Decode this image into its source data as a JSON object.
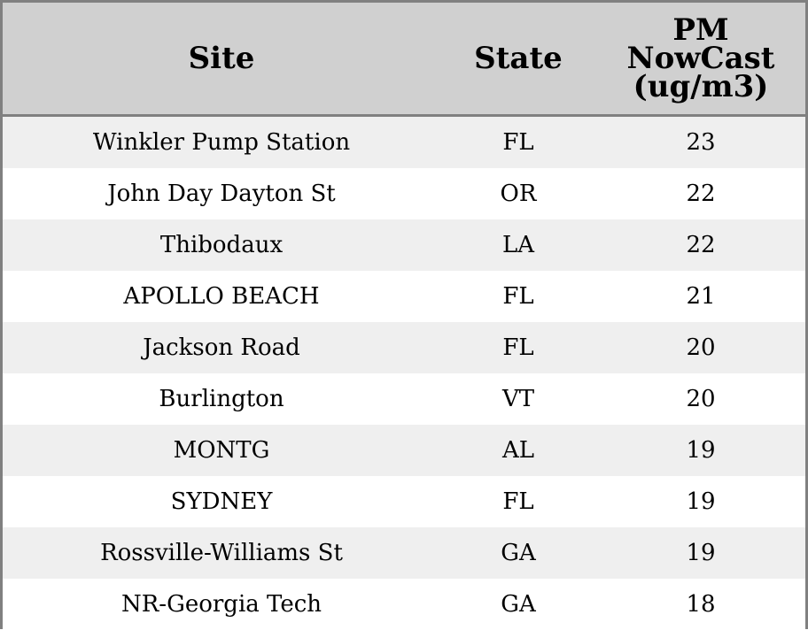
{
  "table": {
    "headers": {
      "site": "Site",
      "state": "State",
      "pm_line1": "PM",
      "pm_line2": "NowCast",
      "pm_line3": "(ug/m3)"
    },
    "rows": [
      {
        "site": "Winkler Pump Station",
        "state": "FL",
        "pm": "23"
      },
      {
        "site": "John Day Dayton St",
        "state": "OR",
        "pm": "22"
      },
      {
        "site": "Thibodaux",
        "state": "LA",
        "pm": "22"
      },
      {
        "site": "APOLLO BEACH",
        "state": "FL",
        "pm": "21"
      },
      {
        "site": "Jackson Road",
        "state": "FL",
        "pm": "20"
      },
      {
        "site": "Burlington",
        "state": "VT",
        "pm": "20"
      },
      {
        "site": "MONTG",
        "state": "AL",
        "pm": "19"
      },
      {
        "site": "SYDNEY",
        "state": "FL",
        "pm": "19"
      },
      {
        "site": "Rossville-Williams St",
        "state": "GA",
        "pm": "19"
      },
      {
        "site": "NR-Georgia Tech",
        "state": "GA",
        "pm": "18"
      }
    ]
  },
  "colors": {
    "header_background": "#d0d0d0",
    "stripe_background": "#efefef",
    "border": "#808080"
  }
}
